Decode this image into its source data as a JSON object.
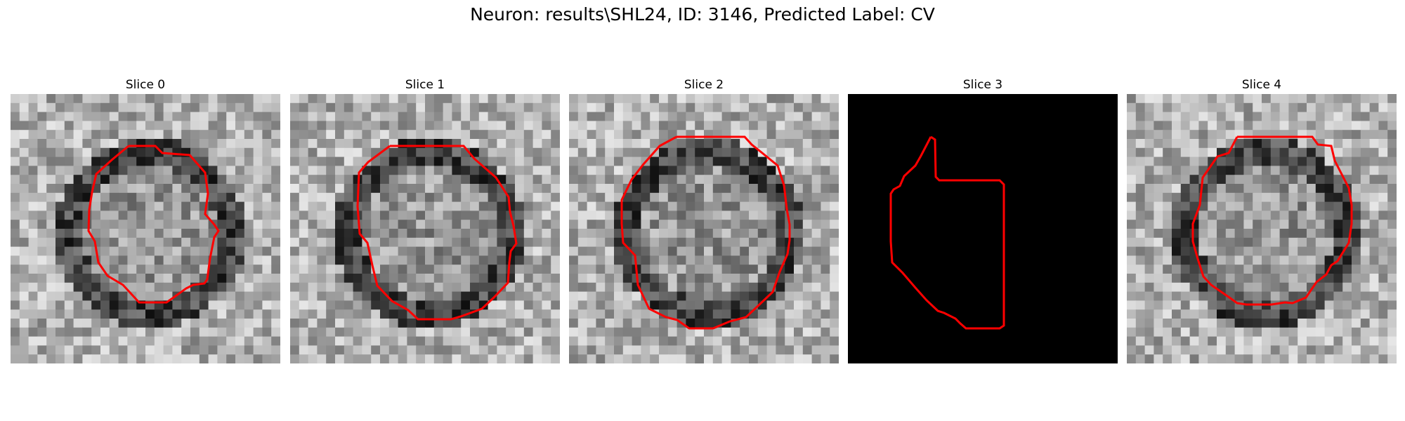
{
  "figure": {
    "title": "Neuron: results\\SHL24, ID: 3146, Predicted Label: CV"
  },
  "panels": [
    {
      "title": "Slice 0",
      "content": "grayscale microscopy patch with red contour",
      "blank": false
    },
    {
      "title": "Slice 1",
      "content": "grayscale microscopy patch with red contour",
      "blank": false
    },
    {
      "title": "Slice 2",
      "content": "grayscale microscopy patch with red contour",
      "blank": false
    },
    {
      "title": "Slice 3",
      "content": "black patch with red contour",
      "blank": true
    },
    {
      "title": "Slice 4",
      "content": "grayscale microscopy patch with red contour",
      "blank": false
    }
  ],
  "colors": {
    "contour": "#ff0000",
    "background": "#000000"
  }
}
